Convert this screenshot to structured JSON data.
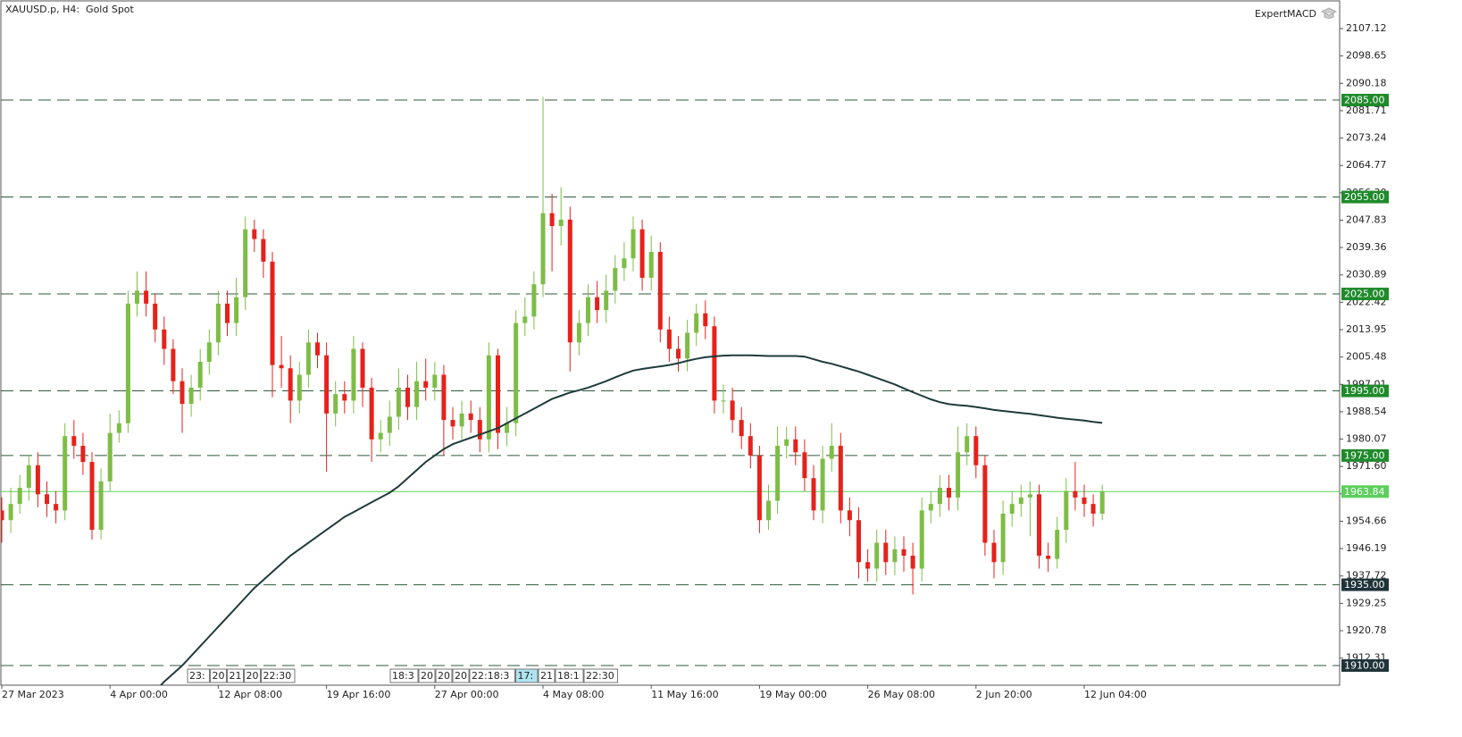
{
  "chart_data": {
    "type": "candlestick",
    "title": "XAUUSD.p, H4:  Gold Spot",
    "indicator": "ExpertMACD",
    "categories": [
      "27 Mar 2023",
      null,
      null,
      null,
      null,
      null,
      null,
      null,
      null,
      null,
      null,
      null,
      "4 Apr 00:00",
      null,
      null,
      null,
      null,
      null,
      null,
      null,
      null,
      null,
      null,
      null,
      "12 Apr 08:00",
      null,
      null,
      null,
      null,
      null,
      null,
      null,
      null,
      null,
      null,
      null,
      "19 Apr 16:00",
      null,
      null,
      null,
      null,
      null,
      null,
      null,
      null,
      null,
      null,
      null,
      "27 Apr 00:00",
      null,
      null,
      null,
      null,
      null,
      null,
      null,
      null,
      null,
      null,
      null,
      "4 May 08:00",
      null,
      null,
      null,
      null,
      null,
      null,
      null,
      null,
      null,
      null,
      null,
      "11 May 16:00",
      null,
      null,
      null,
      null,
      null,
      null,
      null,
      null,
      null,
      null,
      null,
      "19 May 00:00",
      null,
      null,
      null,
      null,
      null,
      null,
      null,
      null,
      null,
      null,
      null,
      "26 May 08:00",
      null,
      null,
      null,
      null,
      null,
      null,
      null,
      null,
      null,
      null,
      null,
      "2 Jun 20:00",
      null,
      null,
      null,
      null,
      null,
      null,
      null,
      null,
      null,
      null,
      null,
      "12 Jun 04:00",
      null,
      null
    ],
    "open": [
      1958,
      1955,
      1960,
      1965,
      1972,
      1963,
      1960,
      1958,
      1981,
      1978,
      1973,
      1952,
      1967,
      1982,
      1985,
      2022,
      2026,
      2022,
      2014,
      2008,
      1998,
      1991,
      1996,
      2004,
      2010,
      2022,
      2016,
      2024,
      2045,
      2042,
      2035,
      2003,
      2002,
      1992,
      2000,
      2010,
      2006,
      1988,
      1994,
      1992,
      2008,
      1996,
      1980,
      1982,
      1987,
      1996,
      1990,
      1998,
      1996,
      2000,
      1986,
      1984,
      1988,
      1986,
      1980,
      2006,
      1982,
      1985,
      2016,
      2018,
      2028,
      2050,
      2046,
      2048,
      2010,
      2016,
      2024,
      2020,
      2026,
      2033,
      2036,
      2045,
      2030,
      2038,
      2014,
      2008,
      2005,
      2013,
      2019,
      2015,
      1992,
      1992,
      1986,
      1981,
      1975,
      1955,
      1961,
      1978,
      1980,
      1976,
      1968,
      1958,
      1974,
      1978,
      1958,
      1955,
      1942,
      1940,
      1948,
      1942,
      1946,
      1944,
      1940,
      1958,
      1960,
      1965,
      1962,
      1976,
      1981,
      1972,
      1948,
      1942,
      1957,
      1960,
      1962,
      1963,
      1944,
      1943,
      1952,
      1964,
      1962,
      1960,
      1957
    ],
    "high": [
      1962,
      1965,
      1969,
      1975,
      1976,
      1967,
      1964,
      1985,
      1986,
      1982,
      1976,
      1971,
      1988,
      1989,
      2026,
      2032,
      2032,
      2025,
      2018,
      2011,
      2002,
      2000,
      2008,
      2014,
      2026,
      2026,
      2030,
      2049,
      2048,
      2045,
      2038,
      2012,
      2006,
      2004,
      2014,
      2013,
      2010,
      1998,
      1998,
      2012,
      2010,
      1999,
      1986,
      1992,
      2002,
      2000,
      2004,
      2005,
      2004,
      2003,
      1990,
      1992,
      1992,
      1990,
      2010,
      2008,
      1990,
      2020,
      2024,
      2032,
      2086,
      2056,
      2058,
      2052,
      2020,
      2028,
      2029,
      2031,
      2037,
      2041,
      2049,
      2048,
      2043,
      2041,
      2018,
      2012,
      2017,
      2022,
      2023,
      2018,
      1997,
      1996,
      1990,
      1985,
      1978,
      1966,
      1984,
      1984,
      1984,
      1980,
      1972,
      1978,
      1985,
      1982,
      1962,
      1959,
      1946,
      1952,
      1952,
      1950,
      1950,
      1948,
      1962,
      1964,
      1969,
      1969,
      1984,
      1985,
      1984,
      1975,
      1952,
      1961,
      1964,
      1966,
      1967,
      1966,
      1948,
      1956,
      1968,
      1973,
      1966,
      1963,
      1966
    ],
    "low": [
      1948,
      1951,
      1957,
      1961,
      1959,
      1956,
      1954,
      1955,
      1974,
      1969,
      1949,
      1949,
      1964,
      1979,
      1982,
      2018,
      2018,
      2010,
      2003,
      1994,
      1982,
      1987,
      1992,
      2000,
      2006,
      2012,
      2012,
      2020,
      2038,
      2030,
      1993,
      1996,
      1985,
      1988,
      1996,
      2002,
      1970,
      1984,
      1988,
      1988,
      1990,
      1973,
      1976,
      1978,
      1983,
      1986,
      1986,
      1992,
      1992,
      1975,
      1980,
      1980,
      1982,
      1976,
      1976,
      1977,
      1978,
      1981,
      2012,
      2014,
      2024,
      2032,
      2040,
      2001,
      2006,
      2012,
      2016,
      2016,
      2022,
      2029,
      2032,
      2026,
      2026,
      2010,
      2004,
      2001,
      2001,
      2009,
      2011,
      1988,
      1988,
      1982,
      1977,
      1971,
      1951,
      1952,
      1957,
      1974,
      1972,
      1964,
      1955,
      1954,
      1970,
      1954,
      1950,
      1937,
      1936,
      1936,
      1938,
      1938,
      1939,
      1932,
      1936,
      1954,
      1956,
      1958,
      1958,
      1972,
      1968,
      1944,
      1937,
      1938,
      1953,
      1956,
      1950,
      1940,
      1939,
      1940,
      1948,
      1958,
      1956,
      1953,
      1955
    ],
    "close": [
      1955,
      1960,
      1965,
      1972,
      1963,
      1960,
      1958,
      1981,
      1978,
      1973,
      1952,
      1967,
      1982,
      1985,
      2022,
      2026,
      2022,
      2014,
      2008,
      1998,
      1991,
      1996,
      2004,
      2010,
      2022,
      2016,
      2024,
      2045,
      2042,
      2035,
      2003,
      2002,
      1992,
      2000,
      2010,
      2006,
      1988,
      1994,
      1992,
      2008,
      1996,
      1980,
      1982,
      1987,
      1996,
      1990,
      1998,
      1996,
      2000,
      1986,
      1984,
      1988,
      1986,
      1980,
      2006,
      1982,
      1985,
      2016,
      2018,
      2028,
      2050,
      2046,
      2048,
      2010,
      2016,
      2024,
      2020,
      2026,
      2033,
      2036,
      2045,
      2030,
      2038,
      2014,
      2008,
      2005,
      2013,
      2019,
      2015,
      1992,
      1992,
      1986,
      1981,
      1975,
      1955,
      1961,
      1978,
      1980,
      1976,
      1968,
      1958,
      1974,
      1978,
      1958,
      1955,
      1942,
      1940,
      1948,
      1942,
      1946,
      1944,
      1940,
      1958,
      1960,
      1965,
      1962,
      1976,
      1981,
      1972,
      1948,
      1942,
      1957,
      1960,
      1962,
      1963,
      1944,
      1943,
      1952,
      1964,
      1962,
      1960,
      1957,
      1963.84
    ],
    "up_color": "#7dbd45",
    "down_color": "#e5221b",
    "ma": {
      "color": "#1f3b3b",
      "values": [
        null,
        null,
        null,
        null,
        null,
        null,
        null,
        null,
        null,
        null,
        null,
        null,
        null,
        null,
        null,
        null,
        null,
        1902,
        1905,
        1907.5,
        1910,
        1913,
        1916,
        1919,
        1922,
        1925,
        1928,
        1931,
        1934,
        1936.5,
        1939,
        1941.5,
        1944,
        1946,
        1948,
        1950,
        1952,
        1954,
        1956,
        1957.5,
        1959,
        1960.5,
        1962,
        1963.5,
        1965.5,
        1968,
        1970.5,
        1973,
        1975,
        1977,
        1978.5,
        1979.5,
        1980.5,
        1981.5,
        1982.5,
        1983.5,
        1985,
        1986.5,
        1988,
        1989.5,
        1991,
        1992.5,
        1993.5,
        1994.5,
        1995.2,
        1996,
        1997,
        1998,
        1999.2,
        2000.3,
        2001.3,
        2001.8,
        2002.2,
        2002.6,
        2003,
        2003.6,
        2004.3,
        2004.9,
        2005.4,
        2005.7,
        2005.9,
        2006,
        2006,
        2006,
        2005.9,
        2005.8,
        2005.8,
        2005.8,
        2005.8,
        2005.6,
        2004.8,
        2004,
        2003.4,
        2002.6,
        2001.8,
        2001,
        2000,
        1999,
        1998,
        1997,
        1995.8,
        1994.6,
        1993.5,
        1992.4,
        1991.5,
        1990.9,
        1990.6,
        1990.4,
        1990,
        1989.6,
        1989.1,
        1988.8,
        1988.5,
        1988.2,
        1987.9,
        1987.5,
        1987.1,
        1986.7,
        1986.4,
        1986.1,
        1985.8,
        1985.4,
        1985.1
      ]
    },
    "ylim": [
      1903.92,
      2115.97
    ],
    "yticks": [
      2107.12,
      2098.65,
      2090.18,
      2081.71,
      2073.24,
      2064.77,
      {
        "value": 2056.3,
        "label": "2056.30"
      },
      2047.83,
      2039.36,
      2030.89,
      2022.42,
      2013.95,
      2005.48,
      1997.01,
      1988.54,
      1980.07,
      {
        "value": 1971.6,
        "label": "1971.60"
      },
      1963.13,
      1954.66,
      1946.19,
      1937.72,
      1929.25,
      1920.78,
      1912.31
    ],
    "levels": [
      {
        "value": 2085,
        "label": "2085.00"
      },
      {
        "value": 2055,
        "label": "2055.00"
      },
      {
        "value": 2025,
        "label": "2025.00"
      },
      {
        "value": 1995,
        "label": "1995.00"
      },
      {
        "value": 1975,
        "label": "1975.00"
      },
      {
        "value": 1935,
        "label": "1935.00"
      },
      {
        "value": 1910,
        "label": "1910.00"
      }
    ],
    "level_colors": [
      "#1f8a2b",
      "#1f8a2b",
      "#1f8a2b",
      "#1f8a2b",
      "#1f8a2b",
      "#20343a",
      "#20343a"
    ],
    "level_line_color": "#2f5a3c",
    "last_price": 1963.84,
    "last_price_color": "#5ccf5c",
    "time_markers": [
      "23:",
      "20",
      "21",
      "20",
      "22:30",
      "18:3",
      "20",
      "20",
      "20",
      "22:18:3",
      "17:",
      "21",
      "18:1",
      "22:30"
    ]
  }
}
